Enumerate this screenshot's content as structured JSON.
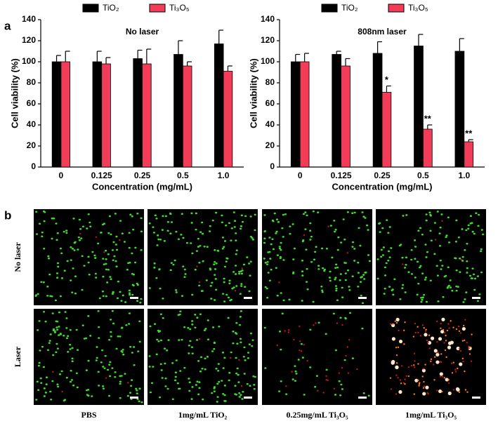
{
  "panel_labels": [
    "a",
    "b"
  ],
  "chart_data": [
    {
      "type": "bar",
      "title": "No laser",
      "y_label": "Cell viability (%)",
      "x_label": "Concentration (mg/mL)",
      "categories": [
        "0",
        "0.125",
        "0.25",
        "0.5",
        "1.0"
      ],
      "series": [
        {
          "name": "TiO₂",
          "color": "#000000",
          "values": [
            100,
            100,
            103,
            107,
            117
          ],
          "errors": [
            6,
            10,
            8,
            13,
            13
          ]
        },
        {
          "name": "Ti₃O₅",
          "color": "#f23c58",
          "values": [
            100,
            98,
            98,
            96,
            91
          ],
          "errors": [
            10,
            6,
            14,
            4,
            5
          ]
        }
      ],
      "ylim": [
        0,
        140
      ],
      "yticks": [
        0,
        20,
        40,
        60,
        80,
        100,
        120,
        140
      ]
    },
    {
      "type": "bar",
      "title": "808nm laser",
      "y_label": "Cell viability (%)",
      "x_label": "Concentration (mg/mL)",
      "categories": [
        "0",
        "0.125",
        "0.25",
        "0.5",
        "1.0"
      ],
      "series": [
        {
          "name": "TiO₂",
          "color": "#000000",
          "values": [
            100,
            107,
            108,
            115,
            110
          ],
          "errors": [
            7,
            3,
            11,
            11,
            12
          ]
        },
        {
          "name": "Ti₃O₅",
          "color": "#f23c58",
          "values": [
            100,
            96,
            71,
            36,
            24
          ],
          "errors": [
            8,
            7,
            6,
            4,
            2
          ]
        }
      ],
      "annotations": [
        {
          "text": "*",
          "category": "0.25",
          "series": 1
        },
        {
          "text": "**",
          "category": "0.5",
          "series": 1
        },
        {
          "text": "**",
          "category": "1.0",
          "series": 1
        }
      ],
      "ylim": [
        0,
        140
      ],
      "yticks": [
        0,
        20,
        40,
        60,
        80,
        100,
        120,
        140
      ]
    }
  ],
  "images": {
    "rows": [
      "No laser",
      "Laser"
    ],
    "columns": [
      "PBS",
      "1mg/mL TiO₂",
      "0.25mg/mL Ti₃O₅",
      "1mg/mL Ti₃O₅"
    ]
  }
}
